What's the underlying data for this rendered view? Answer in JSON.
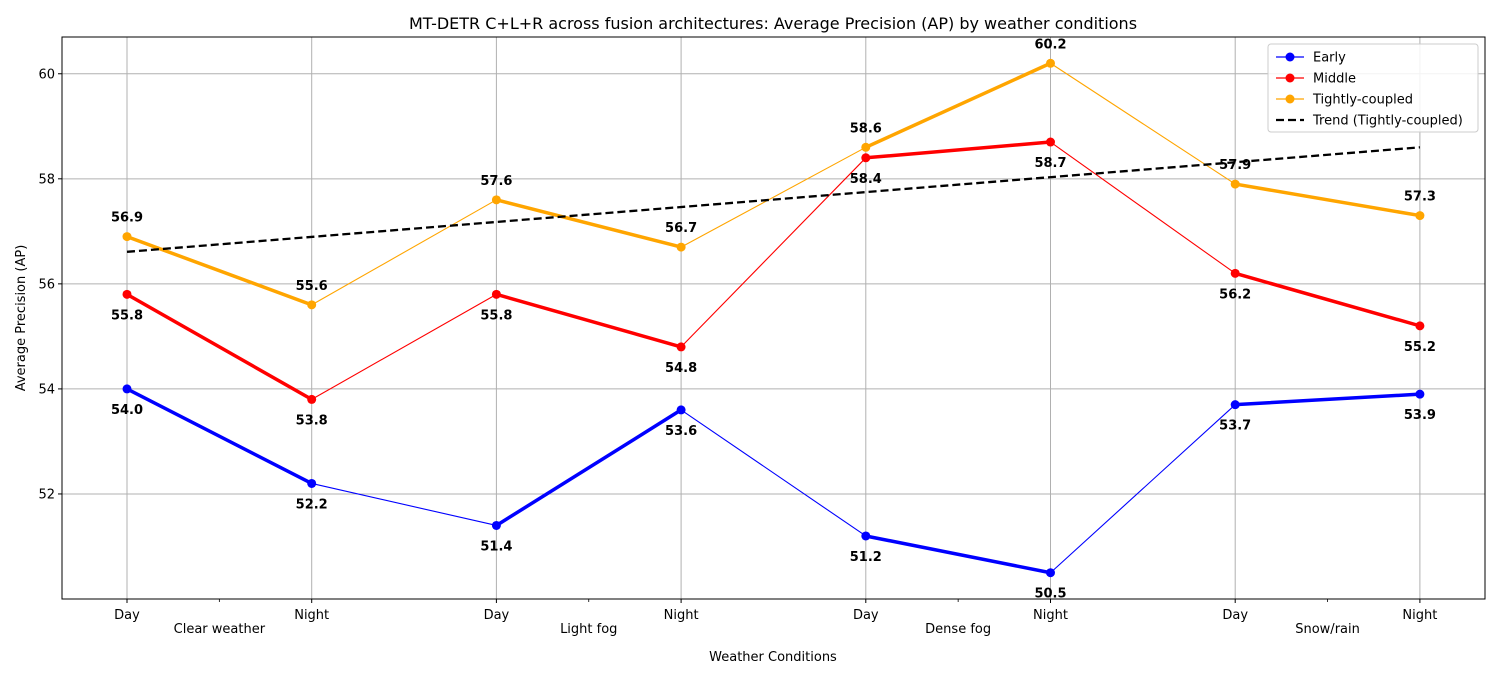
{
  "chart_data": {
    "type": "line",
    "title": "MT-DETR C+L+R across fusion architectures: Average Precision (AP) by weather conditions",
    "xlabel": "Weather Conditions",
    "ylabel": "Average Precision (AP)",
    "categories": [
      "Day",
      "Night",
      "Day",
      "Night",
      "Day",
      "Night",
      "Day",
      "Night"
    ],
    "groups": [
      "Clear weather",
      "Light fog",
      "Dense fog",
      "Snow/rain"
    ],
    "ylim": [
      50,
      60.7
    ],
    "yticks": [
      52,
      54,
      56,
      58,
      60
    ],
    "grid": true,
    "legend_position": "top-right",
    "series": [
      {
        "name": "Early",
        "color": "#0000ff",
        "values": [
          54.0,
          52.2,
          51.4,
          53.6,
          51.2,
          50.5,
          53.7,
          53.9
        ],
        "label_pos": "below"
      },
      {
        "name": "Middle",
        "color": "#ff0000",
        "values": [
          55.8,
          53.8,
          55.8,
          54.8,
          58.4,
          58.7,
          56.2,
          55.2
        ],
        "label_pos": "below"
      },
      {
        "name": "Tightly-coupled",
        "color": "#ffa500",
        "values": [
          56.9,
          55.6,
          57.6,
          56.7,
          58.6,
          60.2,
          57.9,
          57.3
        ],
        "label_pos": "above"
      }
    ],
    "trend": {
      "name": "Trend (Tightly-coupled)",
      "color": "#000000",
      "start": 56.61,
      "end": 58.6
    }
  }
}
